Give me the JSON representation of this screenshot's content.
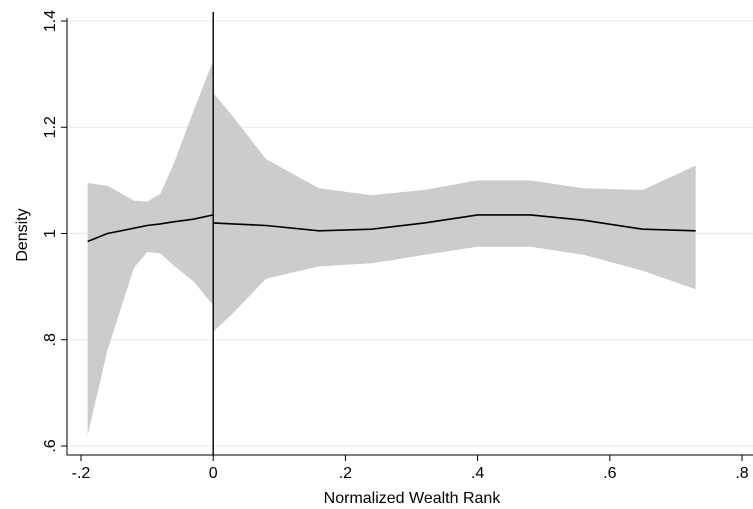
{
  "chart_data": {
    "type": "line",
    "title": "",
    "xlabel": "Normalized Wealth Rank",
    "ylabel": "Density",
    "xlim": [
      -0.2,
      0.8
    ],
    "ylim": [
      0.6,
      1.4
    ],
    "x_ticks": [
      {
        "value": -0.2,
        "label": "-.2"
      },
      {
        "value": 0,
        "label": "0"
      },
      {
        "value": 0.2,
        "label": ".2"
      },
      {
        "value": 0.4,
        "label": ".4"
      },
      {
        "value": 0.6,
        "label": ".6"
      },
      {
        "value": 0.8,
        "label": ".8"
      }
    ],
    "y_ticks": [
      {
        "value": 0.6,
        "label": ".6"
      },
      {
        "value": 0.8,
        "label": ".8"
      },
      {
        "value": 1.0,
        "label": "1"
      },
      {
        "value": 1.2,
        "label": "1.2"
      },
      {
        "value": 1.4,
        "label": "1.4"
      }
    ],
    "grid": true,
    "cutoff_x": 0,
    "band_color": "#cccccc",
    "line_color": "#000000",
    "segments": [
      {
        "x": [
          -0.19,
          -0.16,
          -0.12,
          -0.1,
          -0.08,
          -0.06,
          -0.03,
          0.0
        ],
        "y": [
          0.985,
          1.0,
          1.01,
          1.015,
          1.018,
          1.022,
          1.027,
          1.035
        ],
        "upper": [
          1.095,
          1.09,
          1.062,
          1.06,
          1.075,
          1.13,
          1.23,
          1.325
        ],
        "lower": [
          0.62,
          0.78,
          0.935,
          0.965,
          0.963,
          0.94,
          0.91,
          0.865
        ]
      },
      {
        "x": [
          0.0,
          0.03,
          0.08,
          0.16,
          0.24,
          0.32,
          0.4,
          0.48,
          0.56,
          0.65,
          0.73
        ],
        "y": [
          1.02,
          1.018,
          1.015,
          1.005,
          1.008,
          1.02,
          1.035,
          1.035,
          1.025,
          1.008,
          1.005
        ],
        "upper": [
          1.265,
          1.22,
          1.14,
          1.085,
          1.072,
          1.082,
          1.1,
          1.1,
          1.085,
          1.082,
          1.128
        ],
        "lower": [
          0.815,
          0.85,
          0.915,
          0.938,
          0.944,
          0.96,
          0.975,
          0.975,
          0.96,
          0.93,
          0.895
        ]
      }
    ]
  }
}
